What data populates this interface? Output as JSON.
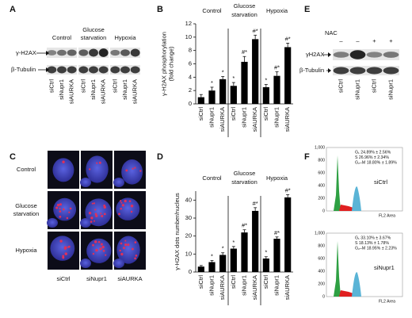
{
  "letters": [
    "A",
    "B",
    "C",
    "D",
    "E",
    "F"
  ],
  "panel_a": {
    "rows": [
      "γ-H2AX",
      "β-Tubulin"
    ],
    "groups": [
      [
        "Control"
      ],
      [
        "Glucose",
        "starvation"
      ],
      [
        "Hypoxia"
      ]
    ],
    "lanes": [
      "siCtrl",
      "siNupr1",
      "siAURKA"
    ]
  },
  "chart_data": [
    {
      "type": "bar",
      "ylabel": [
        "γ-H2AX phosphorylation",
        "(fold change)"
      ],
      "ylim": [
        0,
        12
      ],
      "yticks": [
        0,
        2,
        4,
        6,
        8,
        10,
        12
      ],
      "color": "#000000",
      "groups": [
        {
          "name": [
            "Control"
          ],
          "categories": [
            "siCtrl",
            "siNupr1",
            "siAURKA"
          ],
          "values": [
            1.0,
            2.0,
            3.7
          ],
          "errors": [
            0.4,
            0.5,
            0.4
          ],
          "annotations": [
            null,
            "*",
            "*"
          ]
        },
        {
          "name": [
            "Glucose",
            "starvation"
          ],
          "categories": [
            "siCtrl",
            "siNupr1",
            "siAURKA"
          ],
          "values": [
            2.7,
            6.3,
            9.7
          ],
          "errors": [
            0.5,
            0.8,
            0.6
          ],
          "annotations": [
            "*",
            "#*",
            "#*"
          ]
        },
        {
          "name": [
            "Hypoxia"
          ],
          "categories": [
            "siCtrl",
            "siNupr1",
            "siAURKA"
          ],
          "values": [
            2.5,
            4.2,
            8.5
          ],
          "errors": [
            0.4,
            0.6,
            0.6
          ],
          "annotations": [
            "*",
            "#*",
            "#*"
          ]
        }
      ]
    },
    {
      "type": "bar",
      "ylabel": [
        "γ-H2AX dots number/nucleus"
      ],
      "ylim": [
        0,
        45
      ],
      "yticks": [
        0,
        10,
        20,
        30,
        40
      ],
      "color": "#000000",
      "groups": [
        {
          "name": [
            "Control"
          ],
          "categories": [
            "siCtrl",
            "siNupr1",
            "siAURKA"
          ],
          "values": [
            3,
            5.5,
            9.5
          ],
          "errors": [
            0.6,
            0.9,
            1.2
          ],
          "annotations": [
            null,
            "*",
            "*"
          ]
        },
        {
          "name": [
            "Glucose",
            "starvation"
          ],
          "categories": [
            "siCtrl",
            "siNupr1",
            "siAURKA"
          ],
          "values": [
            13,
            22,
            34
          ],
          "errors": [
            1.2,
            1.5,
            1.8
          ],
          "annotations": [
            "*",
            "#*",
            "#*"
          ]
        },
        {
          "name": [
            "Hypoxia"
          ],
          "categories": [
            "siCtrl",
            "siNupr1",
            "siAURKA"
          ],
          "values": [
            7.5,
            18.5,
            41.5
          ],
          "errors": [
            1.0,
            1.0,
            1.5
          ],
          "annotations": [
            "*",
            "#*",
            "#*"
          ]
        }
      ]
    }
  ],
  "panel_c": {
    "rows": [
      [
        "Control"
      ],
      [
        "Glucose",
        "starvation"
      ],
      [
        "Hypoxia"
      ]
    ],
    "columns": [
      "siCtrl",
      "siNupr1",
      "siAURKA"
    ]
  },
  "panel_e": {
    "treatment": "NAC",
    "signs": [
      "–",
      "–",
      "+",
      "+"
    ],
    "rows": [
      "γH2AX",
      "β-Tubulin"
    ],
    "lanes": [
      "siCtrl",
      "siNupr1",
      "siCtrl",
      "siNupr1"
    ]
  },
  "panel_f": {
    "yticks": [
      "1,000",
      "800",
      "600",
      "400",
      "200",
      "0"
    ],
    "xlabel": "FL2 Area",
    "plots": [
      {
        "label": "siCtrl",
        "stats": [
          "G₁ 24.89% ± 2.56%",
          "S 26.96% ± 2.34%",
          "G₂–M 18.80% ± 1.89%"
        ]
      },
      {
        "label": "siNupr1",
        "stats": [
          "G₁ 33.10% ± 3.67%",
          "S 18.13% ± 1.78%",
          "G₂–M 18.95% ± 2.23%"
        ]
      }
    ]
  }
}
